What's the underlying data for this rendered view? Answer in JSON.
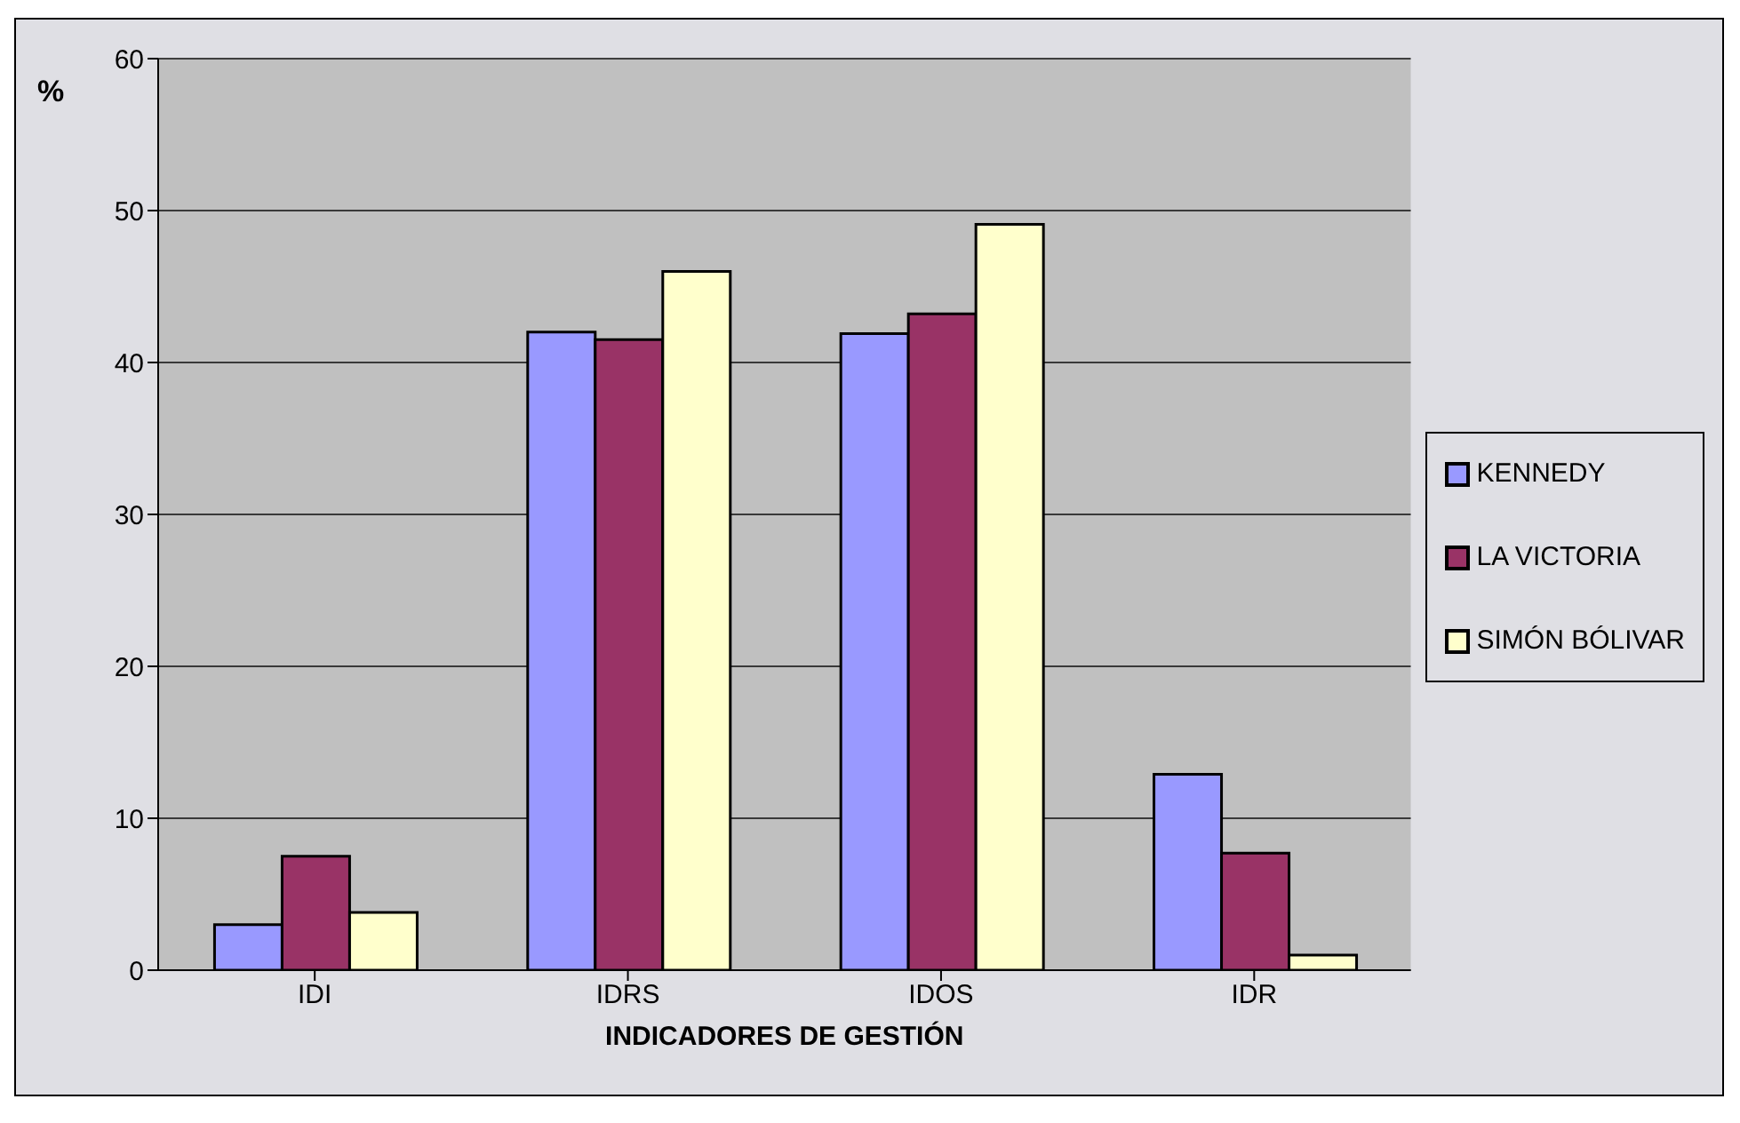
{
  "chart_data": {
    "type": "bar",
    "xlabel": "INDICADORES DE GESTIÓN",
    "ylabel": "%",
    "categories": [
      "IDI",
      "IDRS",
      "IDOS",
      "IDR"
    ],
    "series": [
      {
        "name": "KENNEDY",
        "color": "#9999ff",
        "values": [
          3.0,
          42.0,
          41.9,
          12.9
        ]
      },
      {
        "name": "LA VICTORIA",
        "color": "#993366",
        "values": [
          7.5,
          41.5,
          43.2,
          7.7
        ]
      },
      {
        "name": "SIMÓN BÓLIVAR",
        "color": "#ffffcc",
        "values": [
          3.8,
          46.0,
          49.1,
          1.0
        ]
      }
    ],
    "ylim": [
      0,
      60
    ],
    "yticks": [
      0,
      10,
      20,
      30,
      40,
      50,
      60
    ],
    "grid": "y",
    "legend": "right"
  }
}
